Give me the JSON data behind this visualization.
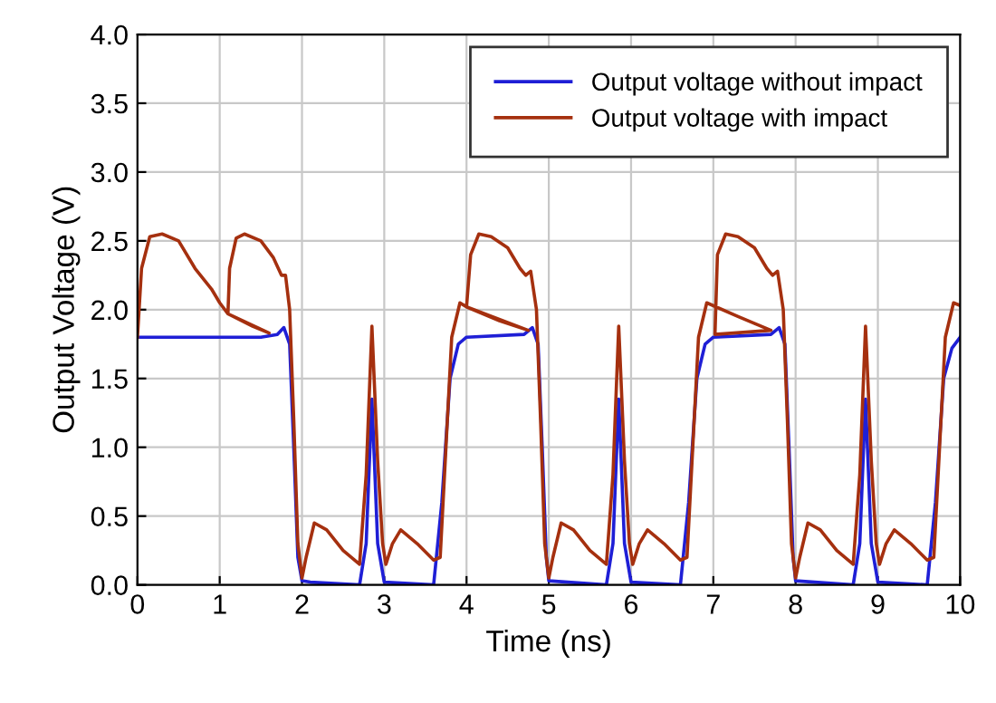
{
  "chart_data": {
    "type": "line",
    "xlabel": "Time (ns)",
    "ylabel": "Output Voltage (V)",
    "xlim": [
      0,
      10
    ],
    "xticks": [
      0,
      1,
      2,
      3,
      4,
      5,
      6,
      7,
      8,
      9,
      10
    ],
    "ylim": [
      0,
      4
    ],
    "yticks": [
      {
        "value": 0,
        "label": "0.0"
      },
      {
        "value": 0.5,
        "label": "0.5"
      },
      {
        "value": 1,
        "label": "1.0"
      },
      {
        "value": 1.5,
        "label": "1.5"
      },
      {
        "value": 2,
        "label": "2.0"
      },
      {
        "value": 2.5,
        "label": "2.5"
      },
      {
        "value": 3,
        "label": "3.0"
      },
      {
        "value": 3.5,
        "label": "3.5"
      },
      {
        "value": 4,
        "label": "4.0"
      }
    ],
    "grid": true,
    "legend": "top right",
    "marker": "none",
    "line_style": "solid",
    "series": [
      {
        "name": "Output voltage without impact",
        "color": "#1f1fd6",
        "x": [
          0,
          1.5,
          1.7,
          1.78,
          1.85,
          1.9,
          1.95,
          2.0,
          2.1,
          2.7,
          2.78,
          2.85,
          2.92,
          3.0,
          3.6,
          3.7,
          3.8,
          3.9,
          4.0,
          4.7,
          4.8,
          4.87,
          4.92,
          4.97,
          5.0,
          5.7,
          5.78,
          5.85,
          5.92,
          6.0,
          6.6,
          6.7,
          6.8,
          6.9,
          7.0,
          7.7,
          7.8,
          7.87,
          7.92,
          7.97,
          8.0,
          8.7,
          8.78,
          8.85,
          8.92,
          9.0,
          9.6,
          9.7,
          9.8,
          9.9,
          10
        ],
        "values": [
          1.8,
          1.8,
          1.82,
          1.87,
          1.75,
          1.0,
          0.2,
          0.03,
          0.02,
          0.0,
          0.3,
          1.35,
          0.3,
          0.02,
          0.0,
          0.6,
          1.5,
          1.75,
          1.8,
          1.82,
          1.87,
          1.75,
          1.0,
          0.2,
          0.03,
          0.0,
          0.3,
          1.35,
          0.3,
          0.02,
          0.0,
          0.6,
          1.5,
          1.75,
          1.8,
          1.82,
          1.87,
          1.75,
          1.0,
          0.2,
          0.03,
          0.0,
          0.3,
          1.35,
          0.3,
          0.02,
          0.0,
          0.6,
          1.5,
          1.72,
          1.8
        ]
      },
      {
        "name": "Output voltage with impact",
        "color": "#a5300f",
        "x": [
          0,
          0.05,
          0.15,
          0.3,
          0.5,
          0.7,
          0.9,
          1.0,
          1.1,
          1.4,
          1.6,
          1.1,
          1.12,
          1.2,
          1.3,
          1.5,
          1.65,
          1.75,
          1.8,
          1.85,
          1.9,
          1.95,
          2.0,
          2.05,
          2.15,
          2.3,
          2.5,
          2.7,
          2.78,
          2.85,
          2.92,
          2.98,
          3.02,
          3.1,
          3.2,
          3.4,
          3.6,
          3.68,
          3.75,
          3.82,
          3.92,
          4.0,
          4.4,
          4.75,
          4.0,
          4.05,
          4.15,
          4.3,
          4.5,
          4.65,
          4.72,
          4.78,
          4.85,
          4.9,
          4.95,
          5.0,
          5.05,
          5.15,
          5.3,
          5.5,
          5.7,
          5.78,
          5.85,
          5.92,
          5.98,
          6.02,
          6.1,
          6.2,
          6.4,
          6.6,
          6.68,
          6.75,
          6.82,
          6.92,
          7.3,
          7.7,
          7.02,
          7.05,
          7.15,
          7.3,
          7.5,
          7.65,
          7.72,
          7.78,
          7.85,
          7.9,
          7.95,
          8.0,
          8.05,
          8.15,
          8.3,
          8.5,
          8.7,
          8.78,
          8.85,
          8.92,
          8.98,
          9.02,
          9.1,
          9.2,
          9.4,
          9.6,
          9.68,
          9.75,
          9.82,
          9.92,
          10
        ],
        "values": [
          1.8,
          2.3,
          2.53,
          2.55,
          2.5,
          2.3,
          2.15,
          2.05,
          1.97,
          1.88,
          1.83,
          1.97,
          2.3,
          2.52,
          2.55,
          2.5,
          2.38,
          2.25,
          2.25,
          2.0,
          1.2,
          0.3,
          0.05,
          0.2,
          0.45,
          0.4,
          0.25,
          0.15,
          0.8,
          1.88,
          0.9,
          0.3,
          0.15,
          0.3,
          0.4,
          0.3,
          0.18,
          0.2,
          1.0,
          1.8,
          2.05,
          2.02,
          1.92,
          1.85,
          2.02,
          2.4,
          2.55,
          2.53,
          2.45,
          2.3,
          2.25,
          2.28,
          2.0,
          1.2,
          0.3,
          0.05,
          0.2,
          0.45,
          0.4,
          0.25,
          0.15,
          0.8,
          1.88,
          0.9,
          0.3,
          0.15,
          0.3,
          0.4,
          0.3,
          0.18,
          0.2,
          1.0,
          1.8,
          2.05,
          1.95,
          1.85,
          1.82,
          2.4,
          2.55,
          2.53,
          2.45,
          2.3,
          2.25,
          2.28,
          2.0,
          1.2,
          0.3,
          0.05,
          0.2,
          0.45,
          0.4,
          0.25,
          0.15,
          0.8,
          1.88,
          0.9,
          0.3,
          0.15,
          0.3,
          0.4,
          0.3,
          0.18,
          0.2,
          1.0,
          1.8,
          2.05,
          2.03
        ]
      }
    ]
  }
}
